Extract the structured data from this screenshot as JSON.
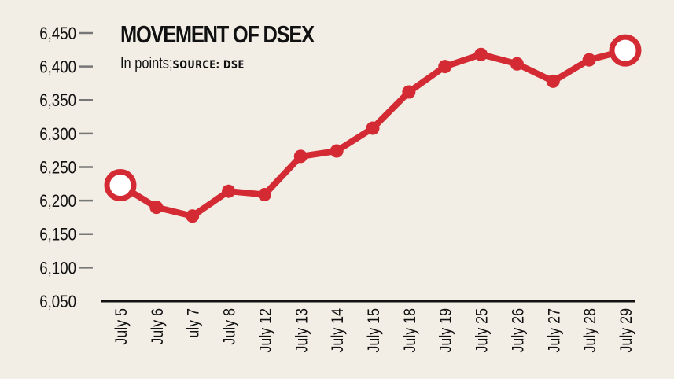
{
  "chart_data": {
    "type": "line",
    "title": "MOVEMENT OF DSEX",
    "subtitle": "In points;",
    "source": "SOURCE: DSE",
    "xlabel": "",
    "ylabel": "",
    "categories": [
      "July 5",
      "July 6",
      "uly 7",
      "July 8",
      "July 12",
      "July 13",
      "July 14",
      "July 15",
      "July 18",
      "July 19",
      "July 25",
      "July 26",
      "July 27",
      "July 28",
      "July 29"
    ],
    "values": [
      6223,
      6190,
      6177,
      6214,
      6209,
      6266,
      6274,
      6308,
      6362,
      6400,
      6418,
      6404,
      6378,
      6410,
      6424
    ],
    "ylim": [
      6050,
      6450
    ],
    "yticks": [
      6050,
      6100,
      6150,
      6200,
      6250,
      6300,
      6350,
      6400,
      6450
    ],
    "ytick_labels": [
      "6,050",
      "6,100",
      "6,150",
      "6,200",
      "6,250",
      "6,300",
      "6,350",
      "6,400",
      "6,450"
    ],
    "grid": false,
    "highlighted_points": [
      "first",
      "last"
    ],
    "colors": {
      "line": "#d42a33",
      "background": "#f2eee6",
      "axis": "#111111",
      "tick": "#777777"
    }
  }
}
